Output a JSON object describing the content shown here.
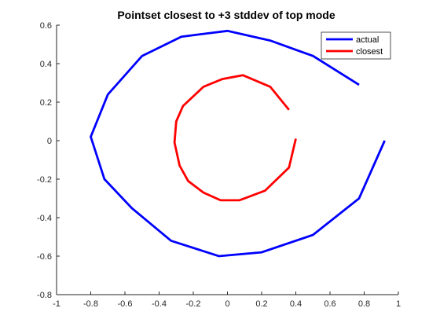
{
  "chart_data": {
    "type": "line",
    "title": "Pointset closest to +3 stddev of top mode",
    "xlabel": "",
    "ylabel": "",
    "xlim": [
      -1,
      1
    ],
    "ylim": [
      -0.8,
      0.6
    ],
    "xticks": [
      "-1",
      "-0.8",
      "-0.6",
      "-0.4",
      "-0.2",
      "0",
      "0.2",
      "0.4",
      "0.6",
      "0.8",
      "1"
    ],
    "yticks": [
      "-0.8",
      "-0.6",
      "-0.4",
      "-0.2",
      "0",
      "0.2",
      "0.4",
      "0.6"
    ],
    "grid": false,
    "legend_position": "top-right",
    "series": [
      {
        "name": "actual",
        "color": "#0000ff",
        "x": [
          0.77,
          0.5,
          0.25,
          0.0,
          -0.27,
          -0.5,
          -0.7,
          -0.8,
          -0.72,
          -0.56,
          -0.33,
          -0.05,
          0.2,
          0.5,
          0.77,
          0.92
        ],
        "y": [
          0.29,
          0.44,
          0.52,
          0.57,
          0.54,
          0.44,
          0.24,
          0.02,
          -0.2,
          -0.35,
          -0.52,
          -0.6,
          -0.58,
          -0.49,
          -0.3,
          0.0
        ]
      },
      {
        "name": "closest",
        "color": "#ff0000",
        "x": [
          0.36,
          0.25,
          0.09,
          -0.03,
          -0.14,
          -0.26,
          -0.3,
          -0.31,
          -0.28,
          -0.23,
          -0.14,
          -0.04,
          0.07,
          0.22,
          0.36,
          0.4
        ],
        "y": [
          0.16,
          0.28,
          0.34,
          0.32,
          0.28,
          0.18,
          0.1,
          -0.01,
          -0.13,
          -0.21,
          -0.27,
          -0.31,
          -0.31,
          -0.26,
          -0.14,
          0.01
        ]
      }
    ]
  }
}
